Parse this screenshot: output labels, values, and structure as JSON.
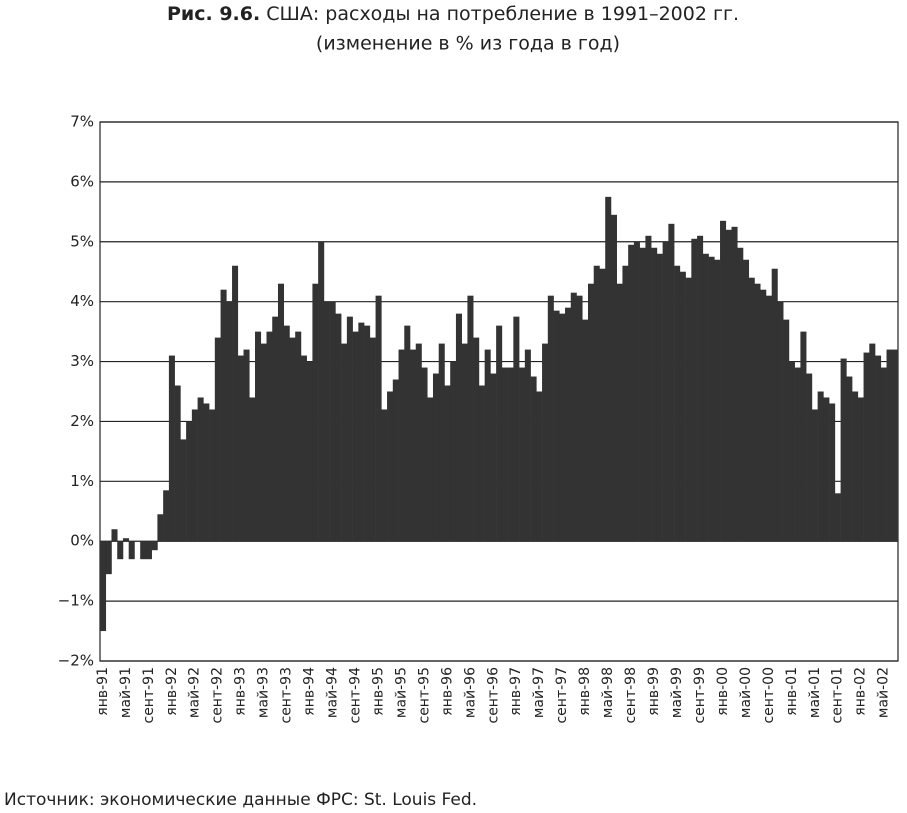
{
  "chart_data": {
    "type": "bar",
    "title": [
      "Рис. 9.6.",
      "США: расходы на потребление в 1991–2002 гг."
    ],
    "subtitle": "(изменение в % из года в год)",
    "source": "Источник: экономические данные ФРС: St. Louis Fed.",
    "color": "#333333",
    "grid": true,
    "ylim": [
      -2,
      7
    ],
    "yticks": [
      {
        "value": -2,
        "label": "−2%"
      },
      {
        "value": -1,
        "label": "−1%"
      },
      {
        "value": 0,
        "label": "0%"
      },
      {
        "value": 1,
        "label": "1%"
      },
      {
        "value": 2,
        "label": "2%"
      },
      {
        "value": 3,
        "label": "3%"
      },
      {
        "value": 4,
        "label": "4%"
      },
      {
        "value": 5,
        "label": "5%"
      },
      {
        "value": 6,
        "label": "6%"
      },
      {
        "value": 7,
        "label": "7%"
      }
    ],
    "categories": [
      "янв-91",
      null,
      null,
      null,
      "май-91",
      null,
      null,
      null,
      "сент-91",
      null,
      null,
      null,
      "янв-92",
      null,
      null,
      null,
      "май-92",
      null,
      null,
      null,
      "сент-92",
      null,
      null,
      null,
      "янв-93",
      null,
      null,
      null,
      "май-93",
      null,
      null,
      null,
      "сент-93",
      null,
      null,
      null,
      "янв-94",
      null,
      null,
      null,
      "май-94",
      null,
      null,
      null,
      "сент-94",
      null,
      null,
      null,
      "янв-95",
      null,
      null,
      null,
      "май-95",
      null,
      null,
      null,
      "сент-95",
      null,
      null,
      null,
      "янв-96",
      null,
      null,
      null,
      "май-96",
      null,
      null,
      null,
      "сент-96",
      null,
      null,
      null,
      "янв-97",
      null,
      null,
      null,
      "май-97",
      null,
      null,
      null,
      "сент-97",
      null,
      null,
      null,
      "янв-98",
      null,
      null,
      null,
      "май-98",
      null,
      null,
      null,
      "сент-98",
      null,
      null,
      null,
      "янв-99",
      null,
      null,
      null,
      "май-99",
      null,
      null,
      null,
      "сент-99",
      null,
      null,
      null,
      "янв-00",
      null,
      null,
      null,
      "май-00",
      null,
      null,
      null,
      "сент-00",
      null,
      null,
      null,
      "янв-01",
      null,
      null,
      null,
      "май-01",
      null,
      null,
      null,
      "сент-01",
      null,
      null,
      null,
      "янв-02",
      null,
      null,
      null,
      "май-02",
      null,
      null
    ],
    "values": [
      -1.5,
      -0.55,
      0.2,
      -0.3,
      0.05,
      -0.3,
      0.0,
      -0.3,
      -0.3,
      -0.15,
      0.45,
      0.85,
      3.1,
      2.6,
      1.7,
      2.0,
      2.2,
      2.4,
      2.3,
      2.2,
      3.4,
      4.2,
      4.0,
      4.6,
      3.1,
      3.2,
      2.4,
      3.5,
      3.3,
      3.5,
      3.75,
      4.3,
      3.6,
      3.4,
      3.5,
      3.1,
      3.0,
      4.3,
      5.0,
      4.0,
      4.0,
      3.8,
      3.3,
      3.75,
      3.5,
      3.65,
      3.6,
      3.4,
      4.1,
      2.2,
      2.5,
      2.7,
      3.2,
      3.6,
      3.2,
      3.3,
      2.9,
      2.4,
      2.8,
      3.3,
      2.6,
      3.0,
      3.8,
      3.3,
      4.1,
      3.4,
      2.6,
      3.2,
      2.8,
      3.6,
      2.9,
      2.9,
      3.75,
      2.9,
      3.2,
      2.75,
      2.5,
      3.3,
      4.1,
      3.85,
      3.8,
      3.9,
      4.15,
      4.1,
      3.7,
      4.3,
      4.6,
      4.55,
      5.75,
      5.45,
      4.3,
      4.6,
      4.95,
      5.0,
      4.9,
      5.1,
      4.9,
      4.8,
      5.0,
      5.3,
      4.6,
      4.5,
      4.4,
      5.05,
      5.1,
      4.8,
      4.75,
      4.7,
      5.35,
      5.2,
      5.25,
      4.9,
      4.7,
      4.4,
      4.3,
      4.2,
      4.1,
      4.55,
      4.0,
      3.7,
      3.0,
      2.9,
      3.5,
      2.8,
      2.2,
      2.5,
      2.4,
      2.3,
      0.8,
      3.05,
      2.75,
      2.5,
      2.4,
      3.15,
      3.3,
      3.1,
      2.9,
      3.2,
      3.2
    ]
  }
}
